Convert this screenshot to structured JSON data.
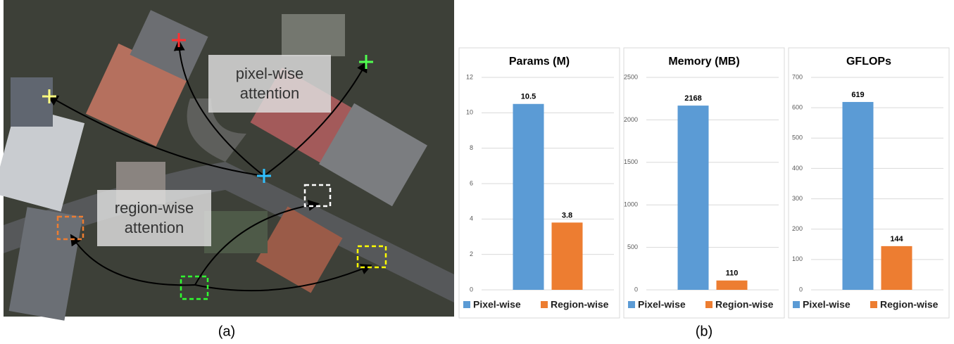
{
  "figure": {
    "panel_a": {
      "pixel_label": [
        "pixel-wise",
        "attention"
      ],
      "region_label": [
        "region-wise",
        "attention"
      ],
      "caption": "(a)"
    },
    "panel_b": {
      "caption": "(b)"
    }
  },
  "chart_data": [
    {
      "type": "bar",
      "title": "Params (M)",
      "categories": [
        null
      ],
      "series": [
        {
          "name": "Pixel-wise",
          "color": "#5b9bd5",
          "values": [
            10.5
          ]
        },
        {
          "name": "Region-wise",
          "color": "#ed7d31",
          "values": [
            3.8
          ]
        }
      ],
      "ylim": [
        0,
        12
      ],
      "yticks": [
        0,
        2,
        4,
        6,
        8,
        10,
        12
      ],
      "grid": true,
      "legend": "bottom"
    },
    {
      "type": "bar",
      "title": "Memory (MB)",
      "categories": [
        null
      ],
      "series": [
        {
          "name": "Pixel-wise",
          "color": "#5b9bd5",
          "values": [
            2168
          ]
        },
        {
          "name": "Region-wise",
          "color": "#ed7d31",
          "values": [
            110
          ]
        }
      ],
      "ylim": [
        0,
        2500
      ],
      "yticks": [
        0,
        500,
        1000,
        1500,
        2000,
        2500
      ],
      "grid": true,
      "legend": "bottom"
    },
    {
      "type": "bar",
      "title": "GFLOPs",
      "categories": [
        null
      ],
      "series": [
        {
          "name": "Pixel-wise",
          "color": "#5b9bd5",
          "values": [
            619
          ]
        },
        {
          "name": "Region-wise",
          "color": "#ed7d31",
          "values": [
            144
          ]
        }
      ],
      "ylim": [
        0,
        700
      ],
      "yticks": [
        0,
        100,
        200,
        300,
        400,
        500,
        600,
        700
      ],
      "grid": true,
      "legend": "bottom"
    }
  ]
}
